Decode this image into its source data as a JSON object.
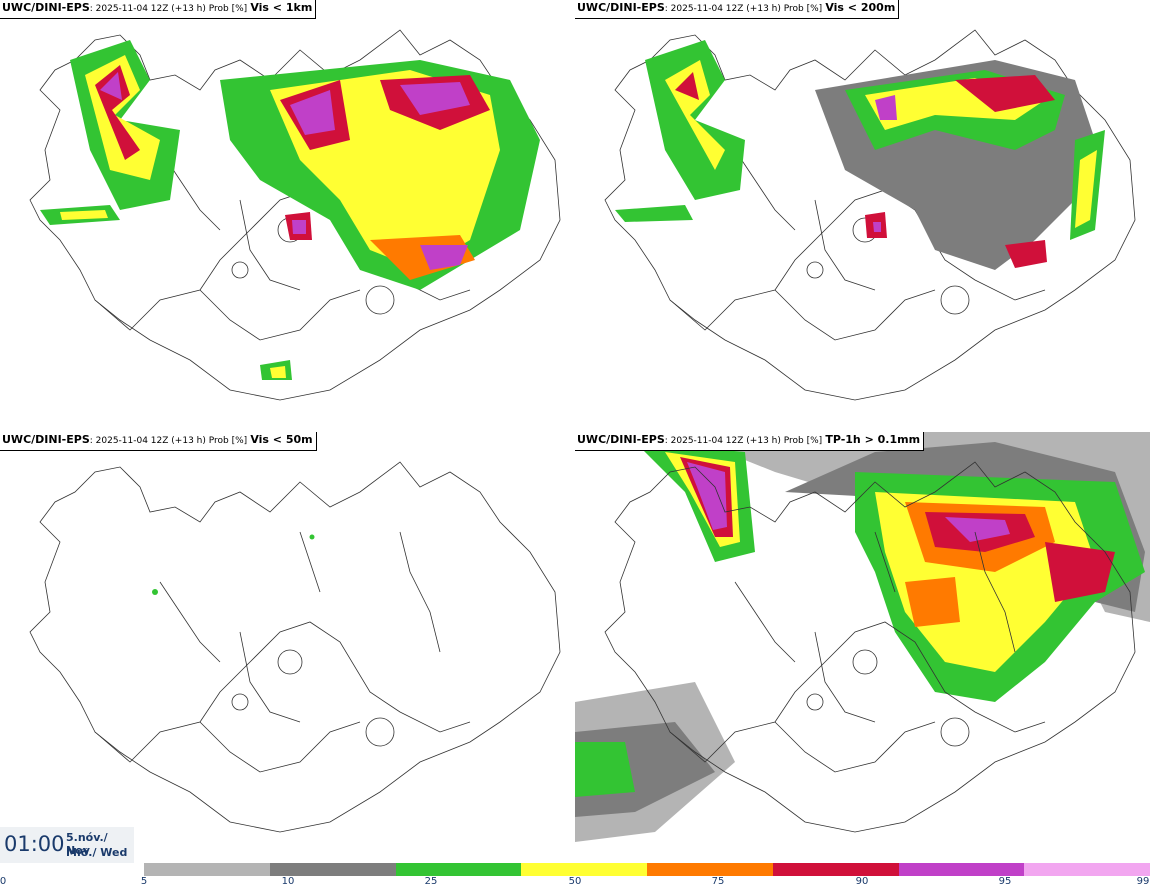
{
  "panels": [
    {
      "model": "UWC/DINI-EPS",
      "run": ": 2025-11-04 12Z (+13 h) Prob [%]",
      "variable": "Vis < 1km"
    },
    {
      "model": "UWC/DINI-EPS",
      "run": ": 2025-11-04 12Z (+13 h) Prob [%]",
      "variable": "Vis < 200m"
    },
    {
      "model": "UWC/DINI-EPS",
      "run": ": 2025-11-04 12Z (+13 h) Prob [%]",
      "variable": "Vis < 50m"
    },
    {
      "model": "UWC/DINI-EPS",
      "run": ": 2025-11-04 12Z (+13 h) Prob [%]",
      "variable": "TP-1h > 0.1mm"
    }
  ],
  "time": {
    "hour": "01:00",
    "date_line1": "5.nóv./ Nov",
    "date_line2": "Mið./ Wed"
  },
  "colorbar": {
    "colors": [
      "#b4b4b4",
      "#7d7d7d",
      "#33c433",
      "#ffff33",
      "#ff7a00",
      "#d0103a",
      "#c040c8",
      "#f2a6f0"
    ],
    "ticks": [
      "0",
      "5",
      "10",
      "25",
      "50",
      "75",
      "90",
      "95",
      "99"
    ]
  }
}
